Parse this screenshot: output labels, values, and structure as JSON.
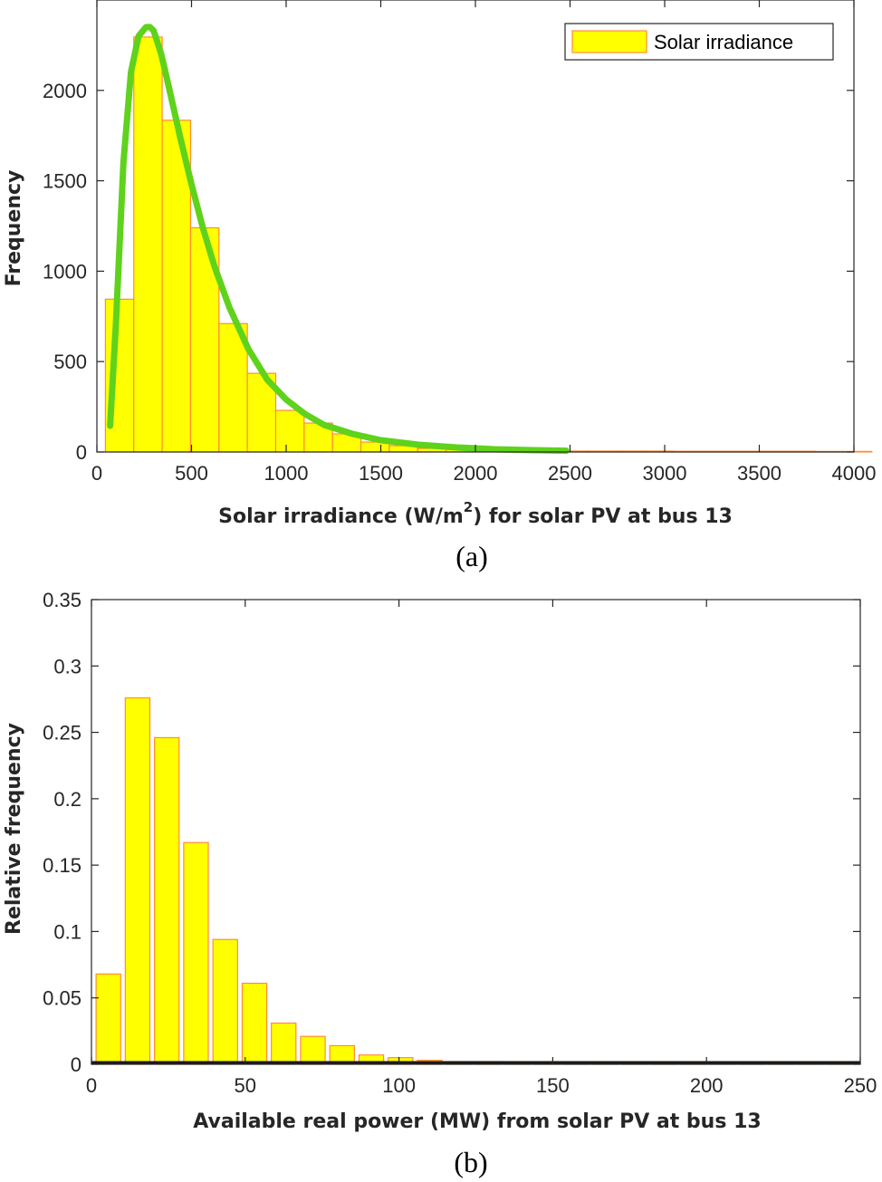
{
  "chart_data": [
    {
      "type": "bar",
      "id": "a",
      "caption": "(a)",
      "xlabel_prefix": "Solar irradiance (W/m",
      "xlabel_sup": "2",
      "xlabel_suffix": ") for solar PV at bus 13",
      "ylabel": "Frequency",
      "xlim": [
        0,
        4000
      ],
      "ylim": [
        0,
        2500
      ],
      "xticks": [
        "0",
        "500",
        "1000",
        "1500",
        "2000",
        "2500",
        "3000",
        "3500",
        "4000"
      ],
      "yticks": [
        "0",
        "500",
        "1000",
        "1500",
        "2000"
      ],
      "legend": {
        "label": "Solar irradiance",
        "position": "top-right"
      },
      "bin_width": 150,
      "bin_start": 45,
      "values": [
        845,
        2295,
        1835,
        1240,
        710,
        435,
        230,
        160,
        100,
        55,
        35,
        20,
        14,
        10,
        8,
        6,
        5,
        5,
        5,
        5,
        4,
        4,
        4,
        4,
        4,
        3,
        3
      ],
      "bar_fill": "#ffff00",
      "bar_edge": "#ff8c3a",
      "fit_curve": {
        "color": "#5fd21c",
        "x": [
          70,
          100,
          140,
          180,
          220,
          260,
          280,
          300,
          340,
          380,
          440,
          500,
          560,
          620,
          700,
          800,
          900,
          1000,
          1100,
          1200,
          1350,
          1500,
          1700,
          1900,
          2100,
          2300,
          2480
        ],
        "y": [
          145,
          700,
          1600,
          2100,
          2300,
          2350,
          2350,
          2330,
          2200,
          2020,
          1740,
          1480,
          1240,
          1030,
          800,
          570,
          400,
          290,
          210,
          150,
          100,
          65,
          40,
          25,
          15,
          10,
          7
        ]
      }
    },
    {
      "type": "bar",
      "id": "b",
      "caption": "(b)",
      "xlabel": "Available real power (MW) from solar PV at bus 13",
      "ylabel": "Relative frequency",
      "xlim": [
        0,
        250
      ],
      "ylim": [
        0,
        0.35
      ],
      "xticks": [
        "0",
        "50",
        "100",
        "150",
        "200",
        "250"
      ],
      "yticks": [
        "0",
        "0.05",
        "0.1",
        "0.15",
        "0.2",
        "0.25",
        "0.3",
        "0.35"
      ],
      "bar_centers": [
        5.5,
        15,
        24.5,
        34,
        43.5,
        53,
        62.5,
        72,
        81.5,
        91,
        100.5,
        110,
        119.5,
        129,
        138.5,
        148,
        157.5,
        167,
        176.5,
        186,
        195.5,
        205,
        214.5,
        224,
        233.5,
        243
      ],
      "bar_width": 8,
      "values": [
        0.068,
        0.276,
        0.246,
        0.167,
        0.094,
        0.061,
        0.031,
        0.021,
        0.014,
        0.007,
        0.005,
        0.003,
        0.002,
        0.002,
        0.001,
        0.001,
        0.001,
        0.001,
        0.001,
        0.001,
        0.001,
        0.001,
        0.001,
        0.001,
        0.001,
        0.001
      ],
      "bar_fill": "#ffff00",
      "bar_edge": "#ff8c3a"
    }
  ]
}
